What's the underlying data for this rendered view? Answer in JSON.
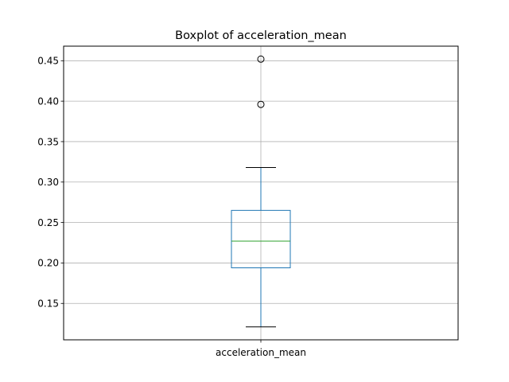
{
  "chart_data": {
    "type": "box",
    "title": "Boxplot of acceleration_mean",
    "xlabel": "",
    "ylabel": "",
    "categories": [
      "acceleration_mean"
    ],
    "boxes": [
      {
        "category": "acceleration_mean",
        "whisker_low": 0.121,
        "q1": 0.194,
        "median": 0.227,
        "q3": 0.265,
        "whisker_high": 0.318,
        "outliers": [
          0.396,
          0.452
        ]
      }
    ],
    "ylim": [
      0.105,
      0.468
    ],
    "yticks": [
      0.15,
      0.2,
      0.25,
      0.3,
      0.35,
      0.4,
      0.45
    ],
    "ytick_labels": [
      "0.15",
      "0.20",
      "0.25",
      "0.30",
      "0.35",
      "0.40",
      "0.45"
    ],
    "grid": true,
    "colors": {
      "box": "#1f77b4",
      "whisker": "#1f77b4",
      "cap": "#000000",
      "median": "#2ca02c",
      "grid": "#b0b0b0",
      "outlier_edge": "#000000"
    }
  }
}
